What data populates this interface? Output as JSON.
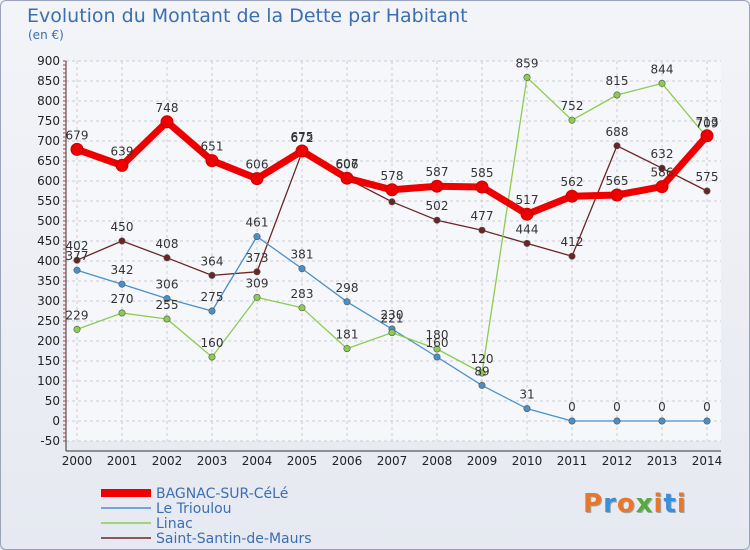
{
  "chart_data": {
    "type": "line",
    "title": "Evolution du Montant de la Dette par Habitant",
    "subtitle": "(en €)",
    "x": [
      "2000",
      "2001",
      "2002",
      "2003",
      "2004",
      "2005",
      "2006",
      "2007",
      "2008",
      "2009",
      "2010",
      "2011",
      "2012",
      "2013",
      "2014"
    ],
    "ylim": [
      -50,
      900
    ],
    "yticks": [
      -50,
      0,
      50,
      100,
      150,
      200,
      250,
      300,
      350,
      400,
      450,
      500,
      550,
      600,
      650,
      700,
      750,
      800,
      850,
      900
    ],
    "grid": true,
    "legend_position": "bottom-left",
    "series": [
      {
        "name": "BAGNAC-SUR-CéLé",
        "color": "#ee0000",
        "values": [
          679,
          639,
          748,
          651,
          606,
          675,
          607,
          578,
          587,
          585,
          517,
          562,
          565,
          586,
          713
        ]
      },
      {
        "name": "Le Trioulou",
        "color": "#4a90c8",
        "values": [
          377,
          342,
          306,
          275,
          461,
          381,
          298,
          230,
          160,
          89,
          31,
          0,
          0,
          0,
          0
        ]
      },
      {
        "name": "Linac",
        "color": "#8ccc50",
        "values": [
          229,
          270,
          255,
          160,
          309,
          283,
          181,
          221,
          180,
          120,
          859,
          752,
          815,
          844,
          709
        ]
      },
      {
        "name": "Saint-Santin-de-Maurs",
        "color": "#6b2525",
        "values": [
          402,
          450,
          408,
          364,
          373,
          672,
          606,
          548,
          502,
          477,
          444,
          412,
          688,
          632,
          575
        ]
      }
    ],
    "point_labels": {
      "BAGNAC-SUR-CéLé": [
        "679",
        "639",
        "748",
        "651",
        "606",
        "675",
        "607",
        "578",
        "587",
        "585",
        "517",
        "562",
        "565",
        "586",
        "713"
      ],
      "Le Trioulou": [
        "377",
        "342",
        "306",
        "275",
        "461",
        "381",
        "298",
        "230",
        "160",
        "89",
        "31",
        "0",
        "0",
        "0",
        "0"
      ],
      "Linac": [
        "229",
        "270",
        "255",
        "160",
        "309",
        "283",
        "181",
        "221",
        "180",
        "120",
        "859",
        "752",
        "815",
        "844",
        "709"
      ],
      "Saint-Santin-de-Maurs": [
        "402",
        "450",
        "408",
        "364",
        "373",
        "672",
        "606",
        "",
        "502",
        "477",
        "444",
        "412",
        "688",
        "632",
        "575"
      ]
    }
  },
  "logo": {
    "text": "Proxiti",
    "colors": [
      "#e8762b",
      "#3b8fd6",
      "#e8762b",
      "#5aa93c",
      "#e8762b",
      "#3b8fd6",
      "#e8762b"
    ]
  }
}
